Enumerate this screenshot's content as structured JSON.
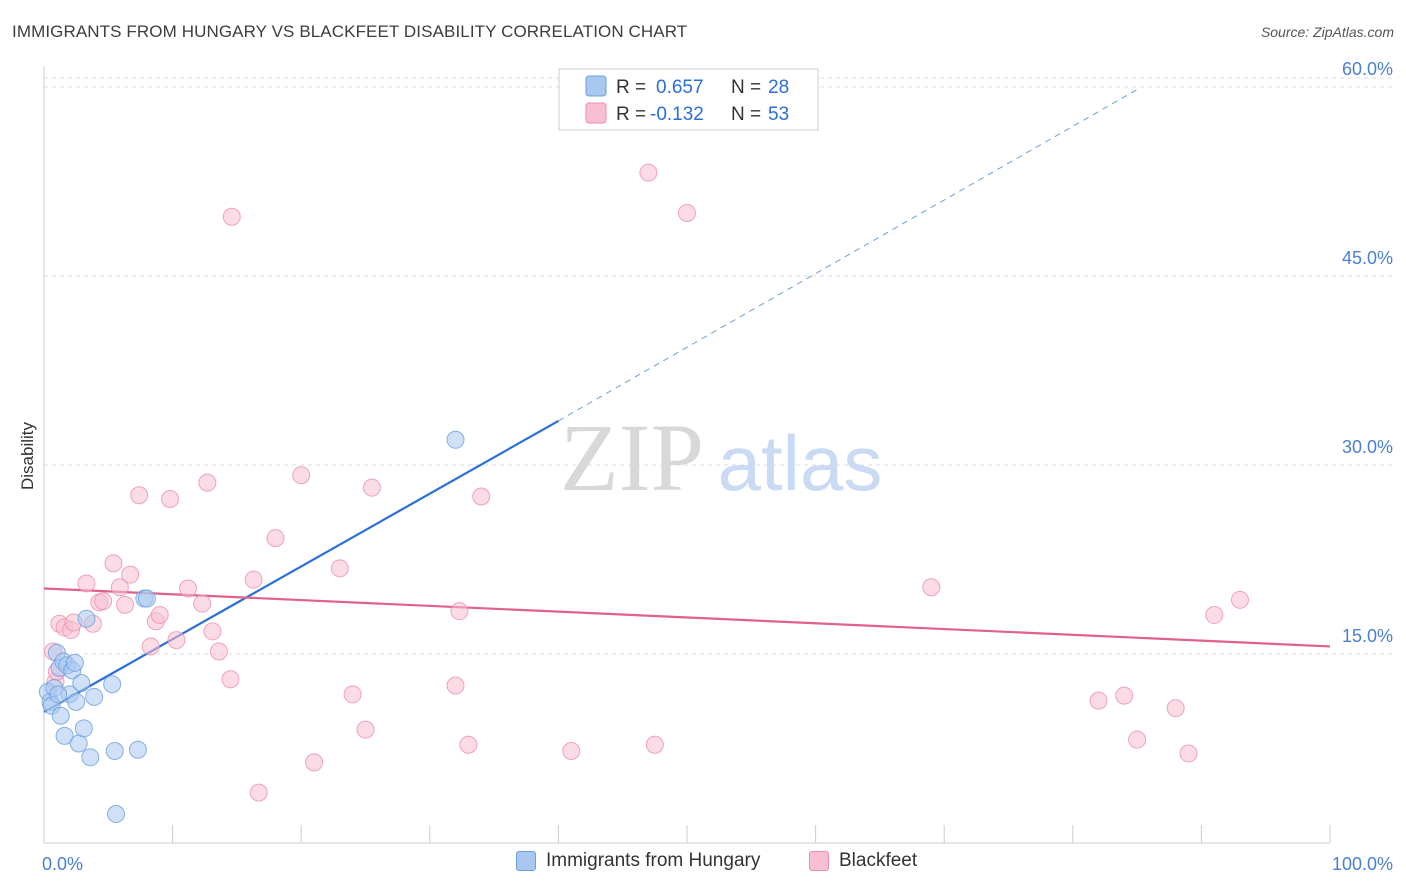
{
  "title": "IMMIGRANTS FROM HUNGARY VS BLACKFEET DISABILITY CORRELATION CHART",
  "source": "Source: ZipAtlas.com",
  "watermark": {
    "zip": "ZIP",
    "atlas": "atlas"
  },
  "colors": {
    "blue_fill": "#a9c8f0",
    "blue_stroke": "#6b9fe0",
    "blue_line": "#2a6fd6",
    "pink_fill": "#f7bfd0",
    "pink_stroke": "#ec8fae",
    "pink_line": "#e0608e",
    "axis_label": "#4a80d0",
    "grid": "#dddddd"
  },
  "legend": [
    {
      "r_label": "R = ",
      "r_value": "0.657",
      "n_label": "N = ",
      "n_value": "28"
    },
    {
      "r_label": "R = ",
      "r_value": "-0.132",
      "n_label": "N = ",
      "n_value": "53"
    }
  ],
  "bottom_legend": [
    {
      "name": "Immigrants from Hungary"
    },
    {
      "name": "Blackfeet"
    }
  ],
  "chart_data": {
    "type": "scatter",
    "title": "IMMIGRANTS FROM HUNGARY VS BLACKFEET DISABILITY CORRELATION CHART",
    "xlabel": "",
    "ylabel": "Disability",
    "xlim": [
      0,
      100
    ],
    "ylim": [
      0,
      63
    ],
    "x_tick_labels": {
      "left": "0.0%",
      "right": "100.0%"
    },
    "y_ticks": [
      15,
      30,
      45,
      60
    ],
    "y_tick_labels": [
      "15.0%",
      "30.0%",
      "45.0%",
      "60.0%"
    ],
    "series": [
      {
        "name": "Immigrants from Hungary",
        "points": [
          [
            0.3,
            12.0
          ],
          [
            0.5,
            11.2
          ],
          [
            0.6,
            10.9
          ],
          [
            0.8,
            12.3
          ],
          [
            1.0,
            15.1
          ],
          [
            1.2,
            13.9
          ],
          [
            1.3,
            10.1
          ],
          [
            1.5,
            14.4
          ],
          [
            1.6,
            8.5
          ],
          [
            1.8,
            14.1
          ],
          [
            2.0,
            11.8
          ],
          [
            2.2,
            13.7
          ],
          [
            2.4,
            14.3
          ],
          [
            2.5,
            11.2
          ],
          [
            2.7,
            7.9
          ],
          [
            2.9,
            12.7
          ],
          [
            3.1,
            9.1
          ],
          [
            3.3,
            17.8
          ],
          [
            3.6,
            6.8
          ],
          [
            3.9,
            11.6
          ],
          [
            5.3,
            12.6
          ],
          [
            5.5,
            7.3
          ],
          [
            5.6,
            2.3
          ],
          [
            7.3,
            7.4
          ],
          [
            7.8,
            19.4
          ],
          [
            8.0,
            19.4
          ],
          [
            32.0,
            32.0
          ],
          [
            1.1,
            11.8
          ]
        ],
        "trend": {
          "x0": 0,
          "y0": 10.4,
          "x1": 40,
          "y1": 33.5,
          "dash_to_x": 85,
          "dash_to_y": 59.8
        }
      },
      {
        "name": "Blackfeet",
        "points": [
          [
            0.7,
            15.2
          ],
          [
            0.9,
            12.8
          ],
          [
            1.0,
            13.6
          ],
          [
            1.2,
            17.4
          ],
          [
            1.6,
            17.1
          ],
          [
            2.1,
            16.9
          ],
          [
            2.3,
            17.5
          ],
          [
            3.3,
            20.6
          ],
          [
            3.8,
            17.4
          ],
          [
            4.3,
            19.1
          ],
          [
            4.6,
            19.2
          ],
          [
            5.4,
            22.2
          ],
          [
            5.9,
            20.3
          ],
          [
            6.3,
            18.9
          ],
          [
            6.7,
            21.3
          ],
          [
            7.4,
            27.6
          ],
          [
            8.3,
            15.6
          ],
          [
            8.7,
            17.6
          ],
          [
            9.0,
            18.1
          ],
          [
            9.8,
            27.3
          ],
          [
            10.3,
            16.1
          ],
          [
            11.2,
            20.2
          ],
          [
            12.3,
            19.0
          ],
          [
            12.7,
            28.6
          ],
          [
            13.1,
            16.8
          ],
          [
            13.6,
            15.2
          ],
          [
            14.5,
            13.0
          ],
          [
            14.6,
            49.7
          ],
          [
            16.3,
            20.9
          ],
          [
            16.7,
            4.0
          ],
          [
            18.0,
            24.2
          ],
          [
            20.0,
            29.2
          ],
          [
            21.0,
            6.4
          ],
          [
            23.0,
            21.8
          ],
          [
            24.0,
            11.8
          ],
          [
            25.0,
            9.0
          ],
          [
            25.5,
            28.2
          ],
          [
            32.0,
            12.5
          ],
          [
            32.3,
            18.4
          ],
          [
            33.0,
            7.8
          ],
          [
            34.0,
            27.5
          ],
          [
            41.0,
            7.3
          ],
          [
            47.0,
            53.2
          ],
          [
            47.5,
            7.8
          ],
          [
            50.0,
            50.0
          ],
          [
            69.0,
            20.3
          ],
          [
            82.0,
            11.3
          ],
          [
            84.0,
            11.7
          ],
          [
            85.0,
            8.2
          ],
          [
            88.0,
            10.7
          ],
          [
            89.0,
            7.1
          ],
          [
            91.0,
            18.1
          ],
          [
            93.0,
            19.3
          ]
        ],
        "trend": {
          "x0": 0,
          "y0": 20.2,
          "x1": 100,
          "y1": 15.6
        }
      }
    ]
  }
}
